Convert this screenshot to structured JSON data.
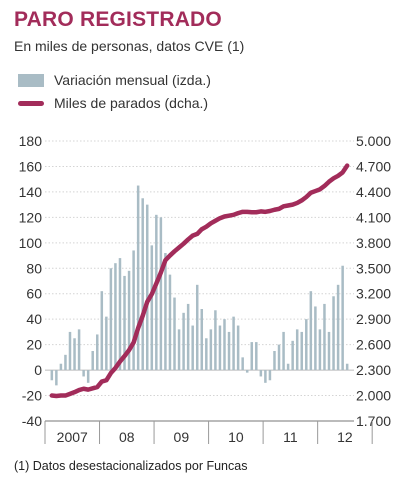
{
  "header": {
    "title": "PARO REGISTRADO",
    "subtitle": "En miles de personas, datos CVE (1)"
  },
  "legend": {
    "bars_label": "Variación mensual (izda.)",
    "line_label": "Miles de parados (dcha.)"
  },
  "footnote": "(1) Datos desestacionalizados por Funcas",
  "colors": {
    "bars": "#a9bcc5",
    "line": "#a22c5a",
    "title": "#a22c5a"
  },
  "chart_data": {
    "type": "bar",
    "combo_with": "line",
    "x_labels": [
      "2007",
      "08",
      "09",
      "10",
      "11",
      "12"
    ],
    "periods": [
      "2007",
      "2007",
      "2007",
      "2007",
      "2007",
      "2007",
      "2007",
      "2007",
      "2007",
      "2007",
      "2007",
      "2007",
      "2008",
      "2008",
      "2008",
      "2008",
      "2008",
      "2008",
      "2008",
      "2008",
      "2008",
      "2008",
      "2008",
      "2008",
      "2009",
      "2009",
      "2009",
      "2009",
      "2009",
      "2009",
      "2009",
      "2009",
      "2009",
      "2009",
      "2009",
      "2009",
      "2010",
      "2010",
      "2010",
      "2010",
      "2010",
      "2010",
      "2010",
      "2010",
      "2010",
      "2010",
      "2010",
      "2010",
      "2011",
      "2011",
      "2011",
      "2011",
      "2011",
      "2011",
      "2011",
      "2011",
      "2011",
      "2011",
      "2011",
      "2011",
      "2012",
      "2012",
      "2012",
      "2012",
      "2012",
      "2012"
    ],
    "left_axis": {
      "ylim": [
        -40,
        180
      ],
      "ticks": [
        -40,
        -20,
        0,
        20,
        40,
        60,
        80,
        100,
        120,
        140,
        160,
        180
      ]
    },
    "right_axis": {
      "ylim": [
        1700,
        5000
      ],
      "ticks": [
        "1.700",
        "2.000",
        "2.300",
        "2.600",
        "2.900",
        "3.200",
        "3.500",
        "3.800",
        "4.100",
        "4.400",
        "4.700",
        "5.000"
      ]
    },
    "series": [
      {
        "name": "Variación mensual (izda.)",
        "axis": "left",
        "values": [
          -8,
          -12,
          5,
          12,
          30,
          25,
          32,
          -5,
          -10,
          15,
          28,
          62,
          42,
          80,
          84,
          88,
          74,
          78,
          94,
          145,
          135,
          130,
          98,
          122,
          120,
          92,
          75,
          57,
          32,
          45,
          52,
          35,
          67,
          48,
          25,
          32,
          47,
          35,
          40,
          30,
          42,
          35,
          10,
          -2,
          22,
          22,
          -5,
          -10,
          -8,
          15,
          20,
          30,
          5,
          23,
          32,
          30,
          40,
          62,
          50,
          32,
          52,
          30,
          58,
          67,
          82,
          5
        ]
      },
      {
        "name": "Miles de parados (dcha.)",
        "axis": "right",
        "values": [
          2000,
          1995,
          2000,
          2000,
          2020,
          2040,
          2065,
          2080,
          2070,
          2085,
          2100,
          2165,
          2180,
          2265,
          2325,
          2400,
          2465,
          2535,
          2625,
          2795,
          2940,
          3105,
          3195,
          3320,
          3450,
          3595,
          3650,
          3700,
          3745,
          3790,
          3840,
          3885,
          3905,
          3960,
          3990,
          4030,
          4060,
          4090,
          4110,
          4120,
          4130,
          4150,
          4165,
          4165,
          4160,
          4160,
          4170,
          4165,
          4175,
          4190,
          4200,
          4230,
          4240,
          4250,
          4270,
          4300,
          4340,
          4390,
          4410,
          4430,
          4470,
          4520,
          4560,
          4590,
          4630,
          4710
        ]
      }
    ]
  }
}
